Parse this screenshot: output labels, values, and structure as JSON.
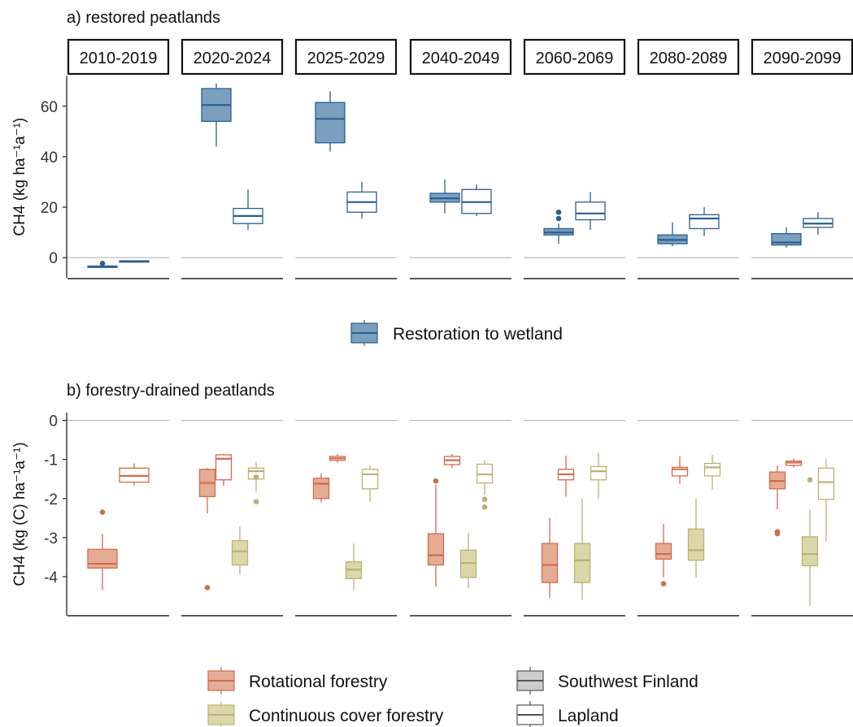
{
  "chart_data": [
    {
      "type": "boxplot",
      "title": "a) restored peatlands",
      "ylabel": "CH4 (kg ha⁻¹a⁻¹)",
      "ylim": [
        -8,
        72
      ],
      "yticks": [
        0,
        20,
        40,
        60
      ],
      "facets": [
        "2010-2019",
        "2020-2024",
        "2025-2029",
        "2040-2049",
        "2060-2069",
        "2080-2089",
        "2090-2099"
      ],
      "legend": [
        {
          "name": "Restoration to wetland",
          "fill": "#7a9fbf",
          "stroke": "#2a5f8f"
        }
      ],
      "boxes": [
        {
          "facet": "2010-2019",
          "series": "Restoration to wetland",
          "region": "Southwest Finland",
          "min": -3.6,
          "q1": -3.6,
          "median": -3.5,
          "q3": -3.4,
          "max": -3.3,
          "outliers": [
            -2.3
          ]
        },
        {
          "facet": "2010-2019",
          "series": "Restoration to wetland",
          "region": "Lapland",
          "min": -1.5,
          "q1": -1.5,
          "median": -1.4,
          "q3": -1.3,
          "max": -1.3,
          "outliers": []
        },
        {
          "facet": "2020-2024",
          "series": "Restoration to wetland",
          "region": "Southwest Finland",
          "min": 44,
          "q1": 54,
          "median": 60.5,
          "q3": 67,
          "max": 69,
          "outliers": []
        },
        {
          "facet": "2020-2024",
          "series": "Restoration to wetland",
          "region": "Lapland",
          "min": 11,
          "q1": 13.5,
          "median": 16.5,
          "q3": 19.5,
          "max": 27,
          "outliers": []
        },
        {
          "facet": "2025-2029",
          "series": "Restoration to wetland",
          "region": "Southwest Finland",
          "min": 42,
          "q1": 45.5,
          "median": 55,
          "q3": 61.5,
          "max": 66,
          "outliers": []
        },
        {
          "facet": "2025-2029",
          "series": "Restoration to wetland",
          "region": "Lapland",
          "min": 15.5,
          "q1": 18,
          "median": 22,
          "q3": 26,
          "max": 30,
          "outliers": []
        },
        {
          "facet": "2040-2049",
          "series": "Restoration to wetland",
          "region": "Southwest Finland",
          "min": 17.5,
          "q1": 22,
          "median": 23.5,
          "q3": 25.5,
          "max": 31,
          "outliers": []
        },
        {
          "facet": "2040-2049",
          "series": "Restoration to wetland",
          "region": "Lapland",
          "min": 16.5,
          "q1": 17.5,
          "median": 22,
          "q3": 27,
          "max": 29,
          "outliers": []
        },
        {
          "facet": "2060-2069",
          "series": "Restoration to wetland",
          "region": "Southwest Finland",
          "min": 5.5,
          "q1": 9,
          "median": 10,
          "q3": 11.5,
          "max": 13.5,
          "outliers": [
            15.5,
            18
          ]
        },
        {
          "facet": "2060-2069",
          "series": "Restoration to wetland",
          "region": "Lapland",
          "min": 11,
          "q1": 15,
          "median": 17.5,
          "q3": 22,
          "max": 26,
          "outliers": []
        },
        {
          "facet": "2080-2089",
          "series": "Restoration to wetland",
          "region": "Southwest Finland",
          "min": 4.5,
          "q1": 5.5,
          "median": 7,
          "q3": 9,
          "max": 14,
          "outliers": []
        },
        {
          "facet": "2080-2089",
          "series": "Restoration to wetland",
          "region": "Lapland",
          "min": 8.5,
          "q1": 11.5,
          "median": 15.5,
          "q3": 17,
          "max": 20,
          "outliers": []
        },
        {
          "facet": "2090-2099",
          "series": "Restoration to wetland",
          "region": "Southwest Finland",
          "min": 4,
          "q1": 5,
          "median": 6,
          "q3": 9.5,
          "max": 12,
          "outliers": []
        },
        {
          "facet": "2090-2099",
          "series": "Restoration to wetland",
          "region": "Lapland",
          "min": 9,
          "q1": 12,
          "median": 13.5,
          "q3": 15.5,
          "max": 18,
          "outliers": []
        }
      ]
    },
    {
      "type": "boxplot",
      "title": "b) forestry-drained peatlands",
      "ylabel": "CH4 (kg (C) ha⁻¹a⁻¹)",
      "ylim": [
        -5,
        0.2
      ],
      "yticks": [
        0,
        -1,
        -2,
        -3,
        -4
      ],
      "facets": [
        "2010-2019",
        "2020-2024",
        "2025-2029",
        "2040-2049",
        "2060-2069",
        "2080-2089",
        "2090-2099"
      ],
      "legend": [
        {
          "name": "Rotational forestry",
          "fill": "#e4ad93",
          "stroke": "#d16b4d"
        },
        {
          "name": "Continuous cover forestry",
          "fill": "#dcd7aa",
          "stroke": "#b8b272"
        },
        {
          "name": "Southwest Finland",
          "fill": "#cccccc",
          "stroke": "#555555"
        },
        {
          "name": "Lapland",
          "fill": "#ffffff",
          "stroke": "#555555"
        }
      ],
      "boxes": [
        {
          "facet": "2010-2019",
          "series": "Rotational forestry",
          "region": "Southwest Finland",
          "min": -4.35,
          "q1": -3.78,
          "median": -3.67,
          "q3": -3.3,
          "max": -2.9,
          "outliers": [
            -2.35
          ]
        },
        {
          "facet": "2010-2019",
          "series": "Rotational forestry",
          "region": "Lapland",
          "min": -1.68,
          "q1": -1.58,
          "median": -1.42,
          "q3": -1.22,
          "max": -1.1,
          "outliers": []
        },
        {
          "facet": "2020-2024",
          "series": "Rotational forestry",
          "region": "Southwest Finland",
          "min": -2.38,
          "q1": -1.95,
          "median": -1.6,
          "q3": -1.25,
          "max": -1.22,
          "outliers": [
            -4.28
          ]
        },
        {
          "facet": "2020-2024",
          "series": "Rotational forestry",
          "region": "Lapland",
          "min": -1.68,
          "q1": -1.52,
          "median": -0.98,
          "q3": -0.88,
          "max": -0.85,
          "outliers": []
        },
        {
          "facet": "2020-2024",
          "series": "Continuous cover forestry",
          "region": "Southwest Finland",
          "min": -3.95,
          "q1": -3.7,
          "median": -3.35,
          "q3": -3.08,
          "max": -2.72,
          "outliers": []
        },
        {
          "facet": "2020-2024",
          "series": "Continuous cover forestry",
          "region": "Lapland",
          "min": -1.82,
          "q1": -1.5,
          "median": -1.3,
          "q3": -1.22,
          "max": -1.06,
          "outliers": [
            -1.45,
            -2.08
          ]
        },
        {
          "facet": "2025-2029",
          "series": "Rotational forestry",
          "region": "Southwest Finland",
          "min": -2.1,
          "q1": -2.0,
          "median": -1.62,
          "q3": -1.48,
          "max": -1.35,
          "outliers": []
        },
        {
          "facet": "2025-2029",
          "series": "Rotational forestry",
          "region": "Lapland",
          "min": -1.08,
          "q1": -1.02,
          "median": -0.97,
          "q3": -0.92,
          "max": -0.86,
          "outliers": []
        },
        {
          "facet": "2025-2029",
          "series": "Continuous cover forestry",
          "region": "Southwest Finland",
          "min": -4.35,
          "q1": -4.05,
          "median": -3.82,
          "q3": -3.62,
          "max": -3.15,
          "outliers": []
        },
        {
          "facet": "2025-2029",
          "series": "Continuous cover forestry",
          "region": "Lapland",
          "min": -2.08,
          "q1": -1.75,
          "median": -1.38,
          "q3": -1.25,
          "max": -1.15,
          "outliers": []
        },
        {
          "facet": "2040-2049",
          "series": "Rotational forestry",
          "region": "Southwest Finland",
          "min": -4.25,
          "q1": -3.7,
          "median": -3.45,
          "q3": -2.9,
          "max": -1.65,
          "outliers": [
            -1.55
          ]
        },
        {
          "facet": "2040-2049",
          "series": "Rotational forestry",
          "region": "Lapland",
          "min": -1.22,
          "q1": -1.13,
          "median": -1.02,
          "q3": -0.92,
          "max": -0.86,
          "outliers": []
        },
        {
          "facet": "2040-2049",
          "series": "Continuous cover forestry",
          "region": "Southwest Finland",
          "min": -4.3,
          "q1": -4.02,
          "median": -3.65,
          "q3": -3.32,
          "max": -2.88,
          "outliers": []
        },
        {
          "facet": "2040-2049",
          "series": "Continuous cover forestry",
          "region": "Lapland",
          "min": -1.9,
          "q1": -1.6,
          "median": -1.38,
          "q3": -1.12,
          "max": -1.02,
          "outliers": [
            -2.02,
            -2.22
          ]
        },
        {
          "facet": "2060-2069",
          "series": "Rotational forestry",
          "region": "Southwest Finland",
          "min": -4.55,
          "q1": -4.15,
          "median": -3.7,
          "q3": -3.15,
          "max": -2.5,
          "outliers": []
        },
        {
          "facet": "2060-2069",
          "series": "Rotational forestry",
          "region": "Lapland",
          "min": -1.95,
          "q1": -1.52,
          "median": -1.38,
          "q3": -1.25,
          "max": -0.9,
          "outliers": []
        },
        {
          "facet": "2060-2069",
          "series": "Continuous cover forestry",
          "region": "Southwest Finland",
          "min": -4.58,
          "q1": -4.15,
          "median": -3.58,
          "q3": -3.15,
          "max": -2.0,
          "outliers": []
        },
        {
          "facet": "2060-2069",
          "series": "Continuous cover forestry",
          "region": "Lapland",
          "min": -2.0,
          "q1": -1.52,
          "median": -1.3,
          "q3": -1.18,
          "max": -0.82,
          "outliers": []
        },
        {
          "facet": "2080-2089",
          "series": "Rotational forestry",
          "region": "Southwest Finland",
          "min": -4.02,
          "q1": -3.55,
          "median": -3.42,
          "q3": -3.15,
          "max": -2.65,
          "outliers": [
            -4.18
          ]
        },
        {
          "facet": "2080-2089",
          "series": "Rotational forestry",
          "region": "Lapland",
          "min": -1.62,
          "q1": -1.42,
          "median": -1.25,
          "q3": -1.2,
          "max": -0.92,
          "outliers": []
        },
        {
          "facet": "2080-2089",
          "series": "Continuous cover forestry",
          "region": "Southwest Finland",
          "min": -4.02,
          "q1": -3.58,
          "median": -3.32,
          "q3": -2.78,
          "max": -2.0,
          "outliers": []
        },
        {
          "facet": "2080-2089",
          "series": "Continuous cover forestry",
          "region": "Lapland",
          "min": -1.78,
          "q1": -1.42,
          "median": -1.2,
          "q3": -1.1,
          "max": -0.88,
          "outliers": []
        },
        {
          "facet": "2090-2099",
          "series": "Rotational forestry",
          "region": "Southwest Finland",
          "min": -2.28,
          "q1": -1.75,
          "median": -1.55,
          "q3": -1.32,
          "max": -1.15,
          "outliers": [
            -2.85,
            -2.9
          ]
        },
        {
          "facet": "2090-2099",
          "series": "Rotational forestry",
          "region": "Lapland",
          "min": -1.2,
          "q1": -1.15,
          "median": -1.08,
          "q3": -1.04,
          "max": -0.98,
          "outliers": []
        },
        {
          "facet": "2090-2099",
          "series": "Continuous cover forestry",
          "region": "Southwest Finland",
          "min": -4.75,
          "q1": -3.72,
          "median": -3.42,
          "q3": -2.98,
          "max": -2.28,
          "outliers": [
            -1.52
          ]
        },
        {
          "facet": "2090-2099",
          "series": "Continuous cover forestry",
          "region": "Lapland",
          "min": -3.1,
          "q1": -2.02,
          "median": -1.58,
          "q3": -1.22,
          "max": -0.98,
          "outliers": []
        }
      ]
    }
  ]
}
